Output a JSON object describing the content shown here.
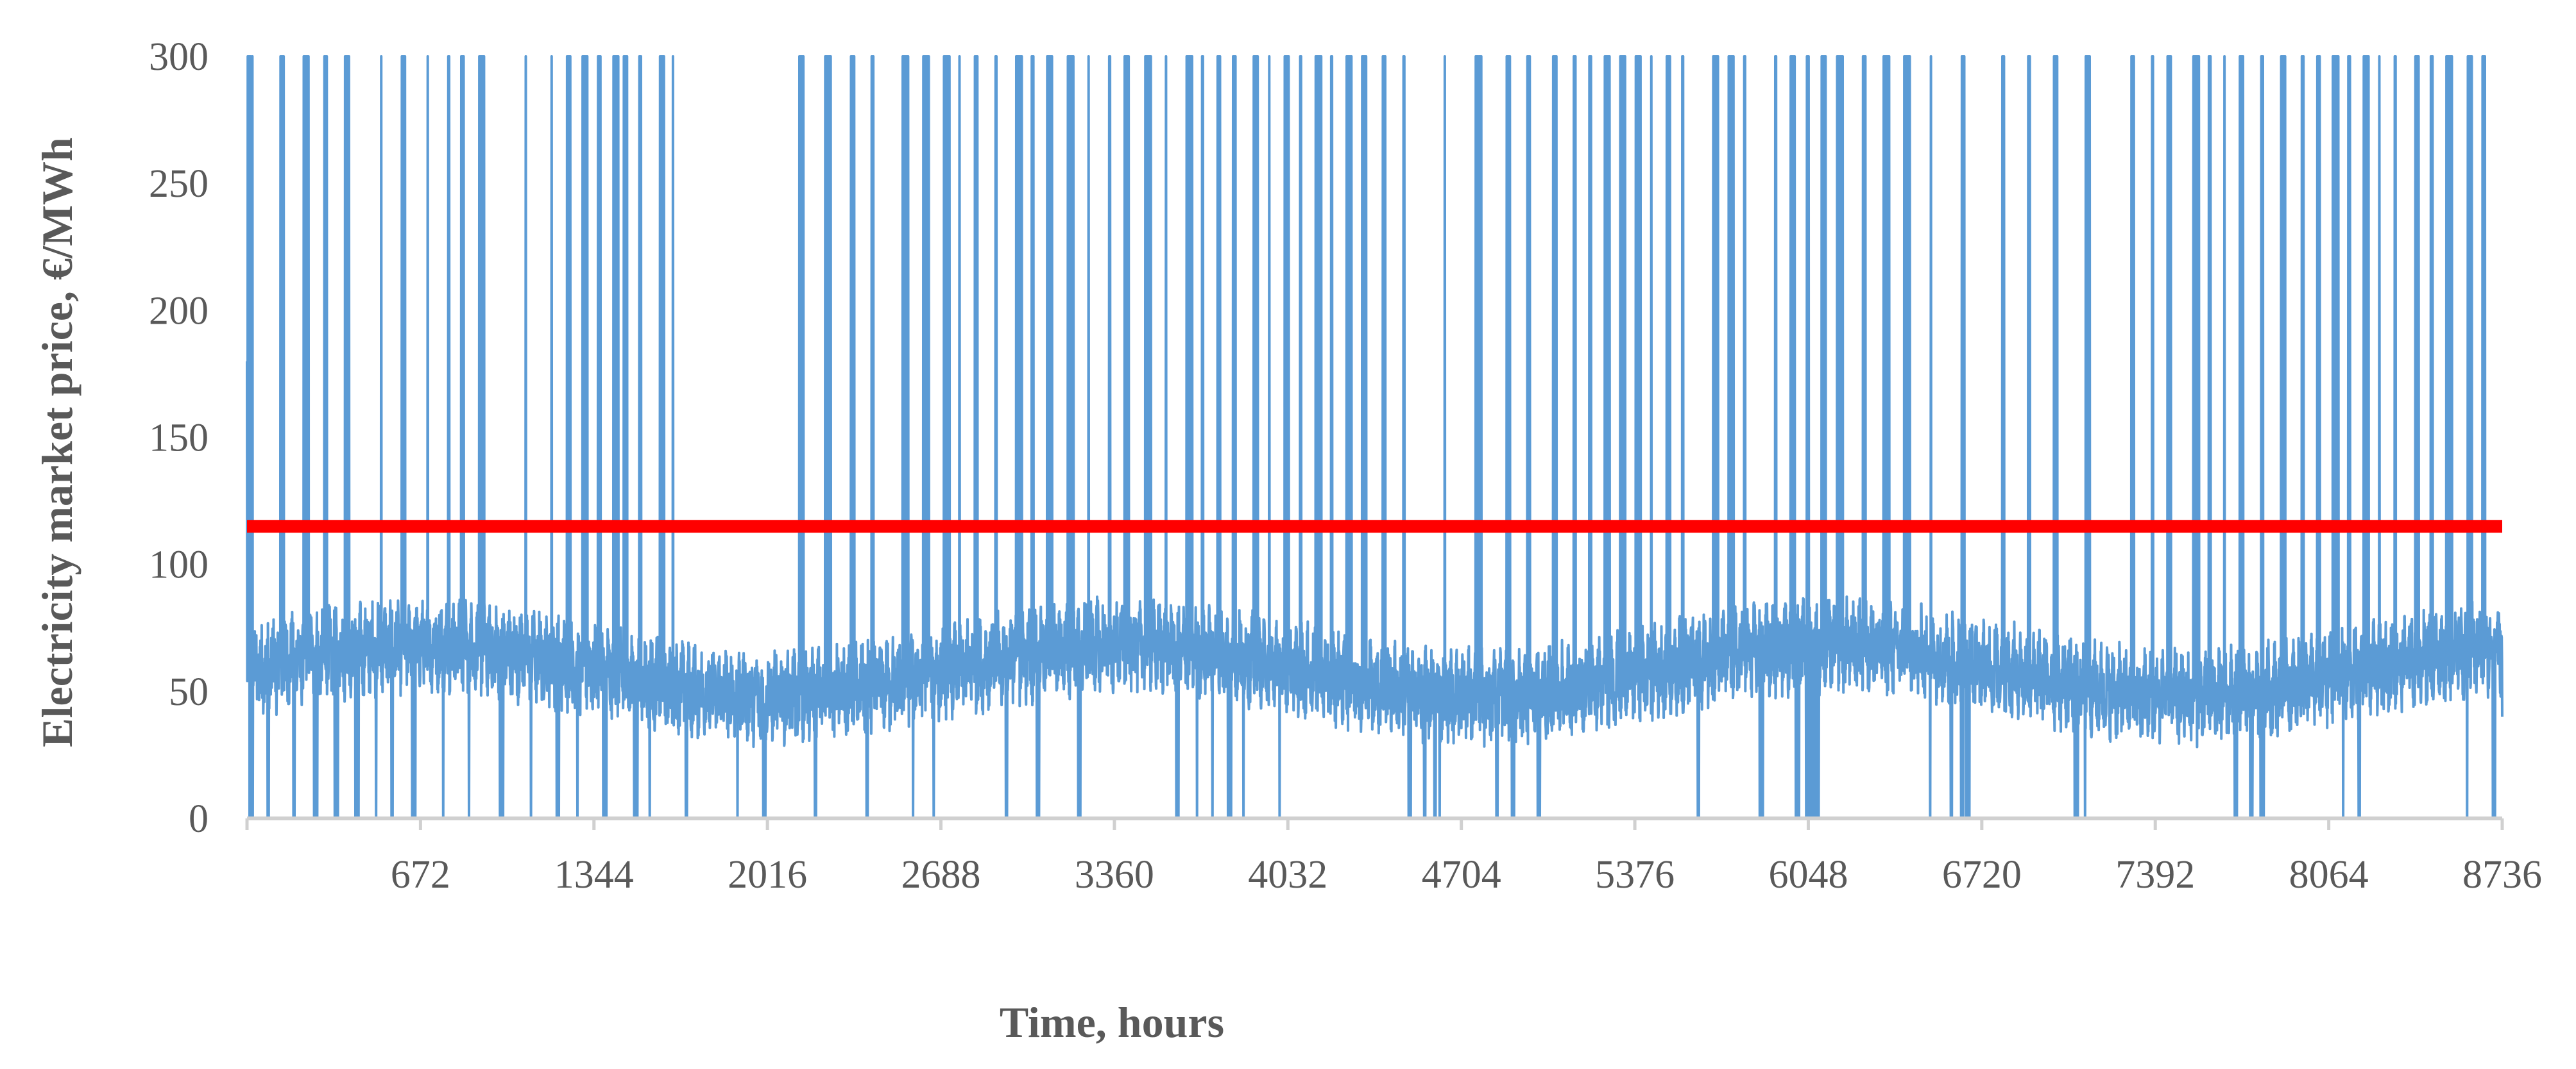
{
  "chart_data": {
    "type": "line",
    "title": "",
    "xlabel": "Time, hours",
    "ylabel": "Electricity market price, €/MWh",
    "xlim": [
      0,
      8736
    ],
    "ylim": [
      0,
      300
    ],
    "x_ticks": [
      672,
      1344,
      2016,
      2688,
      3360,
      4032,
      4704,
      5376,
      6048,
      6720,
      7392,
      8064,
      8736
    ],
    "y_ticks": [
      0,
      50,
      100,
      150,
      200,
      250,
      300
    ],
    "grid": false,
    "legend": "none",
    "series": [
      {
        "color": "#5b9bd5",
        "sampling": "hourly, 0–8736",
        "values": [],
        "approx_profile": {
          "baseline_band": [
            35,
            90
          ],
          "spikes_to_max_at_hours": [
            0,
            130,
            220,
            300,
            380,
            520,
            600,
            700,
            780,
            830,
            900,
            1080,
            1180,
            1240,
            1300,
            1360,
            1420,
            1460,
            1520,
            1600,
            1650,
            2140,
            2240,
            2340,
            2420,
            2540,
            2620,
            2700,
            2760,
            2820,
            2900,
            2980,
            3040,
            3100,
            3180,
            3260,
            3340,
            3400,
            3480,
            3560,
            3640,
            3700,
            3760,
            3820,
            3900,
            3960,
            4020,
            4080,
            4140,
            4200,
            4260,
            4320,
            4400,
            4480,
            4560,
            4640,
            4760,
            4880,
            4960,
            5060,
            5140,
            5200,
            5260,
            5320,
            5380,
            5440,
            5500,
            5560,
            5620,
            5680,
            5740,
            5800,
            5860,
            5920,
            5980,
            6040,
            6100,
            6160,
            6260,
            6340,
            6420,
            6520,
            6640,
            6800,
            6900,
            7000,
            7120,
            7300,
            7380,
            7440,
            7540,
            7600,
            7660,
            7720,
            7800,
            7880,
            7960,
            8020,
            8080,
            8140,
            8200,
            8260,
            8320,
            8400,
            8460,
            8520,
            8600,
            8660
          ],
          "dips_to_zero_at_hours": [
            10,
            80,
            180,
            260,
            340,
            420,
            500,
            560,
            640,
            760,
            860,
            980,
            1100,
            1200,
            1280,
            1380,
            1500,
            1560,
            1700,
            1900,
            2000,
            2200,
            2400,
            2580,
            2660,
            2940,
            3060,
            3220,
            3600,
            3680,
            3740,
            3800,
            3860,
            4000,
            4500,
            4560,
            4600,
            4620,
            4840,
            4900,
            5000,
            5620,
            5860,
            6000,
            6040,
            6060,
            6080,
            6520,
            6600,
            6640,
            6660,
            7080,
            7120,
            7700,
            7760,
            7800,
            8120,
            8180,
            8600,
            8700
          ]
        }
      },
      {
        "name": "",
        "color": "#ff0000",
        "type": "constant",
        "value": 115
      }
    ]
  }
}
